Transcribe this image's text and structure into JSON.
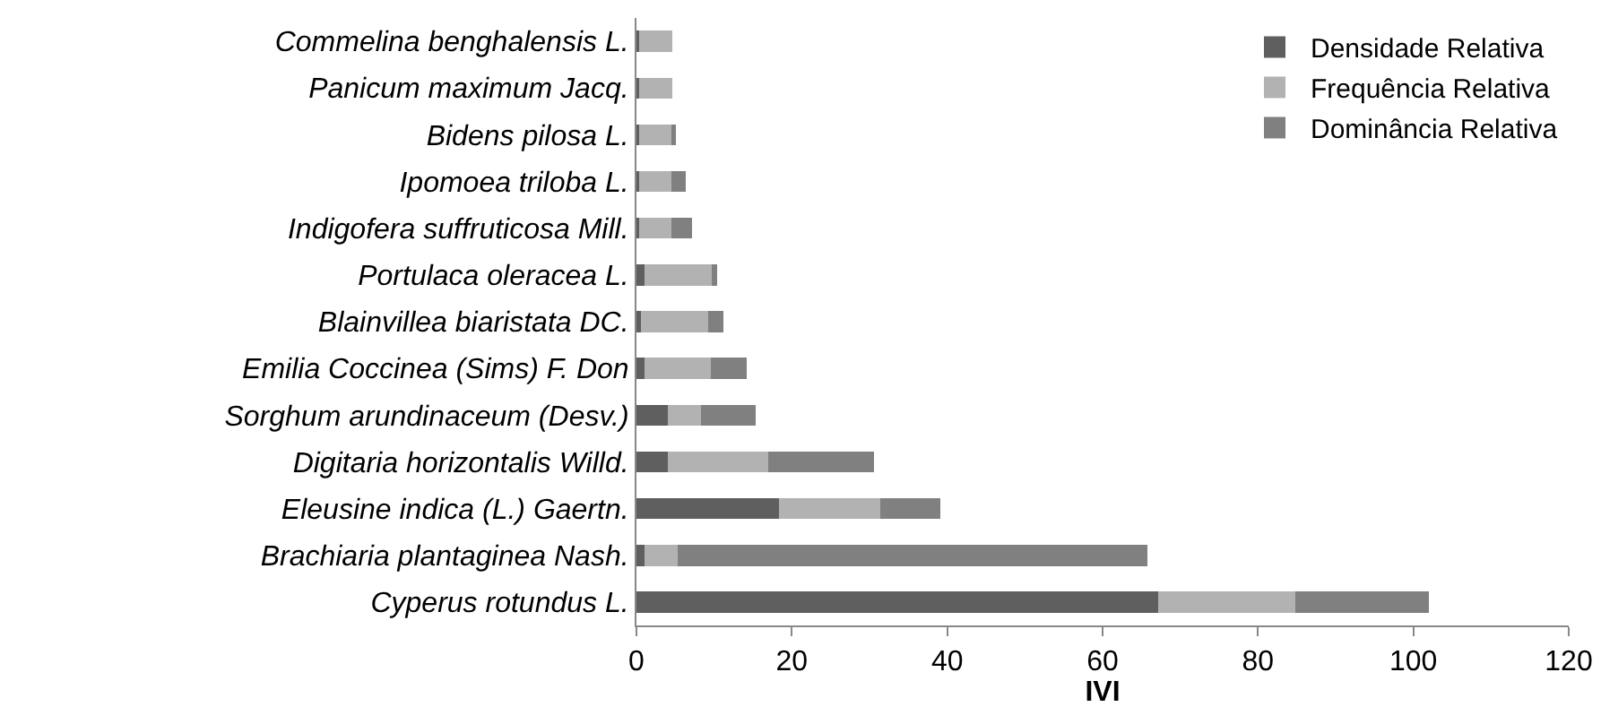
{
  "chart_data": {
    "type": "bar",
    "orientation": "horizontal",
    "stacked": true,
    "xlabel": "IVI",
    "categories": [
      "Commelina benghalensis L.",
      "Panicum maximum Jacq.",
      "Bidens pilosa L.",
      "Ipomoea triloba L.",
      "Indigofera suffruticosa Mill.",
      "Portulaca oleracea L.",
      "Blainvillea biaristata DC.",
      "Emilia Coccinea (Sims) F. Don",
      "Sorghum arundinaceum (Desv.)",
      "Digitaria horizontalis Willd.",
      "Eleusine indica (L.) Gaertn.",
      "Brachiaria plantaginea Nash.",
      "Cyperus rotundus L."
    ],
    "series": [
      {
        "name": "Densidade Relativa",
        "color": "#5f5f5f",
        "values": [
          0.3,
          0.3,
          0.3,
          0.3,
          0.3,
          1.0,
          0.6,
          1.0,
          4.0,
          4.0,
          18.4,
          1.0,
          67.2
        ]
      },
      {
        "name": "Frequência Relativa",
        "color": "#b2b2b2",
        "values": [
          4.3,
          4.3,
          4.2,
          4.2,
          4.2,
          8.7,
          8.6,
          8.6,
          4.3,
          13.0,
          13.0,
          4.3,
          17.6
        ]
      },
      {
        "name": "Dominância Relativa",
        "color": "#808080",
        "values": [
          0,
          0,
          0.6,
          1.9,
          2.7,
          0.7,
          2.0,
          4.6,
          7.0,
          13.6,
          7.7,
          60.5,
          17.2
        ]
      }
    ],
    "xlim": [
      0,
      120
    ],
    "xticks": [
      0,
      20,
      40,
      60,
      80,
      100,
      120
    ],
    "grid": false,
    "legend": "top right"
  }
}
